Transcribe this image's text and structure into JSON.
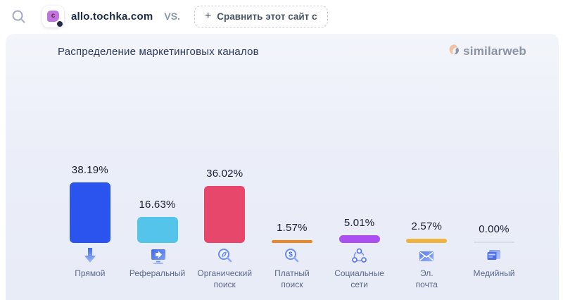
{
  "topbar": {
    "domain": "allo.tochka.com",
    "favicon_letter": "c",
    "vs_label": "VS.",
    "compare_plus": "+",
    "compare_label": "Сравнить этот сайт с"
  },
  "card": {
    "title": "Распределение маркетинговых каналов",
    "brand_name": "similarweb"
  },
  "chart_data": {
    "type": "bar",
    "title": "Распределение маркетинговых каналов",
    "unit": "%",
    "ylim": [
      0,
      40
    ],
    "grid": false,
    "legend": "none",
    "categories": [
      "Прямой",
      "Реферальный",
      "Органический поиск",
      "Платный поиск",
      "Социальные сети",
      "Эл. почта",
      "Медийный"
    ],
    "values": [
      38.19,
      16.63,
      36.02,
      1.57,
      5.01,
      2.57,
      0.0
    ],
    "points": [
      {
        "label": "Прямой",
        "display_label": "Прямой",
        "value": 38.19,
        "value_label": "38.19%",
        "color": "#2b54ee",
        "icon": "direct-arrow-icon"
      },
      {
        "label": "Реферальный",
        "display_label": "Реферальный",
        "value": 16.63,
        "value_label": "16.63%",
        "color": "#55c4ea",
        "icon": "referral-monitor-icon"
      },
      {
        "label": "Органический поиск",
        "display_label": "Органический\nпоиск",
        "value": 36.02,
        "value_label": "36.02%",
        "color": "#e8476c",
        "icon": "organic-search-icon"
      },
      {
        "label": "Платный поиск",
        "display_label": "Платный\nпоиск",
        "value": 1.57,
        "value_label": "1.57%",
        "color": "#f08524",
        "icon": "paid-search-icon"
      },
      {
        "label": "Социальные сети",
        "display_label": "Социальные\nсети",
        "value": 5.01,
        "value_label": "5.01%",
        "color": "#ab4ff0",
        "icon": "social-network-icon"
      },
      {
        "label": "Эл. почта",
        "display_label": "Эл.\nпочта",
        "value": 2.57,
        "value_label": "2.57%",
        "color": "#f0b440",
        "icon": "email-icon"
      },
      {
        "label": "Медийный",
        "display_label": "Медийный",
        "value": 0.0,
        "value_label": "0.00%",
        "color": "#d9dde8",
        "icon": "display-ads-icon"
      }
    ]
  }
}
